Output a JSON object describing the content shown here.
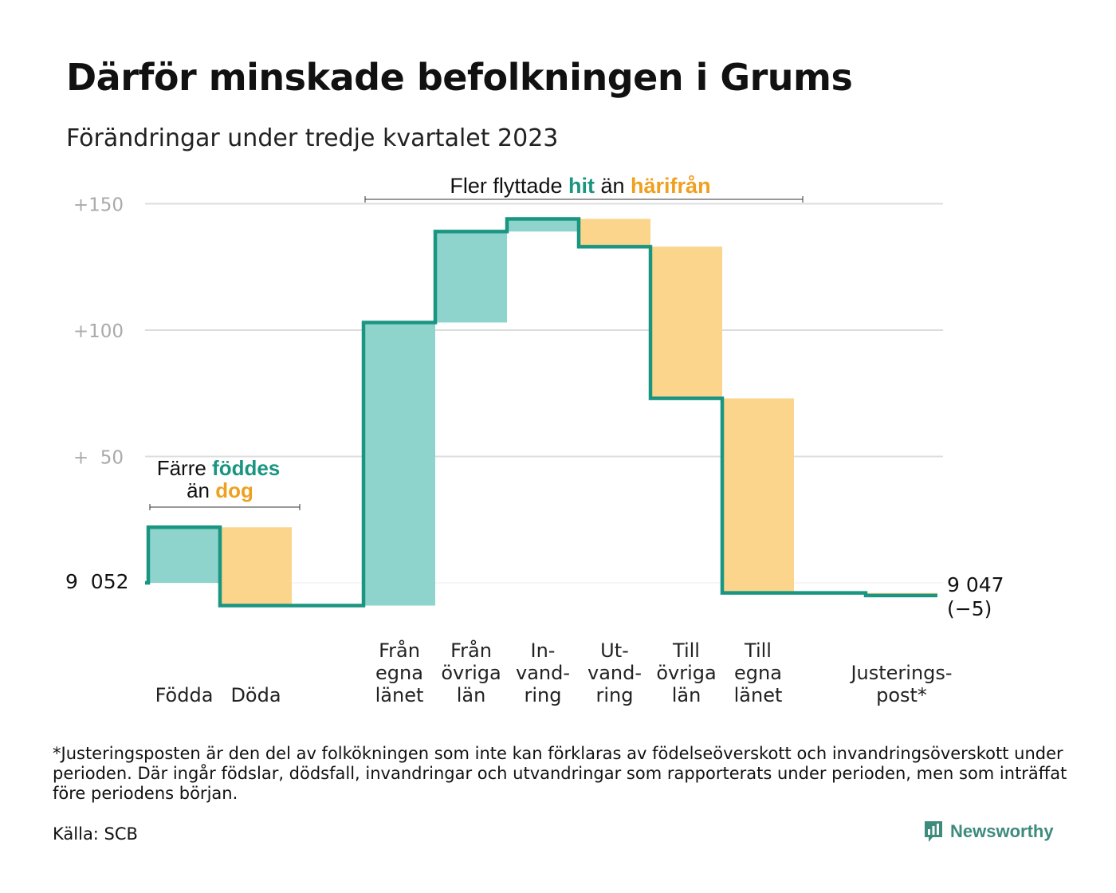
{
  "title": "Därför minskade befolkningen i Grums",
  "subtitle": "Förändringar under tredje kvartalet 2023",
  "colors": {
    "increase_fill": "#8fd4cc",
    "decrease_fill": "#fbd58c",
    "line": "#1a9582",
    "increase_text": "#1a9582",
    "decrease_text": "#f0a01e",
    "grid": "#dddddd",
    "tick_text": "#aaaaaa"
  },
  "annotations": {
    "births_deaths": {
      "line1_prefix": "Färre ",
      "line1_highlight": "föddes",
      "line2_prefix": "än ",
      "line2_highlight": "dog"
    },
    "migration": {
      "prefix": "Fler flyttade ",
      "highlight1": "hit",
      "middle": " än ",
      "highlight2": "härifrån"
    }
  },
  "chart_data": {
    "type": "waterfall",
    "start_value": 0,
    "start_label": "9  052",
    "end_label_line1": "9 047",
    "end_label_line2": "(−5)",
    "ylim": [
      -12,
      155
    ],
    "yticks": [
      {
        "value": 50,
        "label": "+  50"
      },
      {
        "value": 100,
        "label": "+100"
      },
      {
        "value": 150,
        "label": "+150"
      }
    ],
    "steps": [
      {
        "label": [
          "",
          "",
          "Födda"
        ],
        "change": 22
      },
      {
        "label": [
          "",
          "",
          "Döda"
        ],
        "change": -31
      },
      {
        "label": [
          "",
          "",
          ""
        ],
        "change": 0
      },
      {
        "label": [
          "Från",
          "egna",
          "länet"
        ],
        "change": 112
      },
      {
        "label": [
          "Från",
          "övriga",
          "län"
        ],
        "change": 36
      },
      {
        "label": [
          "In-",
          "vand-",
          "ring"
        ],
        "change": 5
      },
      {
        "label": [
          "Ut-",
          "vand-",
          "ring"
        ],
        "change": -11
      },
      {
        "label": [
          "Till",
          "övriga",
          "län"
        ],
        "change": -60
      },
      {
        "label": [
          "Till",
          "egna",
          "länet"
        ],
        "change": -77
      },
      {
        "label": [
          "",
          "",
          ""
        ],
        "change": 0
      },
      {
        "label": [
          "Justerings-",
          "post*",
          ""
        ],
        "change": -1
      }
    ],
    "end_value": -5
  },
  "footnote": "*Justeringsposten är den del av folkökningen som inte kan förklaras av födelseöverskott och invandringsöverskott under perioden. Där ingår födslar, dödsfall, invandringar och utvandringar som rapporterats under perioden, men som inträffat före periodens början.",
  "source": "Källa: SCB",
  "brand": "Newsworthy",
  "brand_icon": "bar-chart-speech-icon"
}
